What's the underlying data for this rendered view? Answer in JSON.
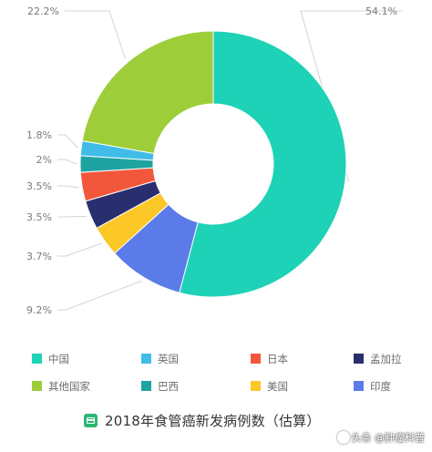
{
  "chart_data": {
    "type": "donut",
    "categories": [
      "中国",
      "印度",
      "美国",
      "孟加拉",
      "日本",
      "巴西",
      "英国",
      "其他国家"
    ],
    "values": [
      54.1,
      9.2,
      3.7,
      3.5,
      3.5,
      2.0,
      1.8,
      22.2
    ],
    "value_labels": [
      "54.1%",
      "9.2%",
      "3.7%",
      "3.5%",
      "3.5%",
      "2%",
      "1.8%",
      "22.2%"
    ],
    "colors": [
      "#1dd2b6",
      "#5b7be9",
      "#fbc828",
      "#292f6e",
      "#f3573b",
      "#1fa3a0",
      "#41bce8",
      "#9dce3a"
    ],
    "legend": {
      "placement": "bottom",
      "rows": [
        [
          "中国",
          "英国",
          "日本",
          "孟加拉"
        ],
        [
          "其他国家",
          "巴西",
          "美国",
          "印度"
        ]
      ]
    },
    "title": "2018年食管癌新发病例数（估算）"
  },
  "watermark": "头条 @肿瘤科普"
}
